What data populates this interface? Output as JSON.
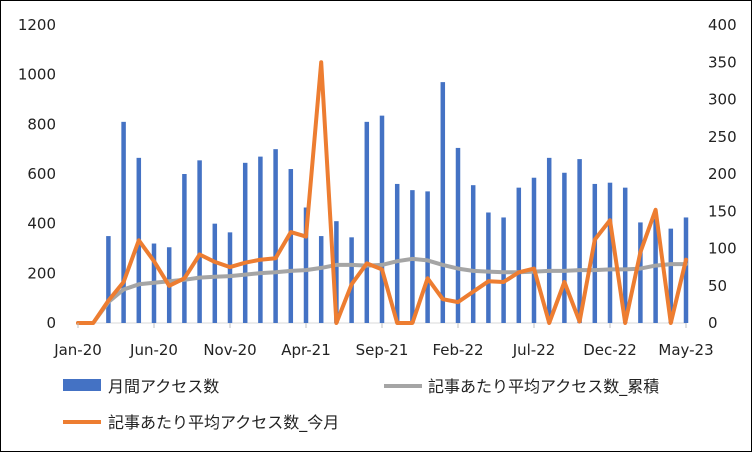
{
  "chart_data": {
    "type": "bar+line",
    "title": "",
    "x_tick_labels": [
      "Jan-20",
      "Jun-20",
      "Nov-20",
      "Apr-21",
      "Sep-21",
      "Feb-22",
      "Jul-22",
      "Dec-22",
      "May-23"
    ],
    "y_left": {
      "ylim": [
        0,
        1200
      ],
      "ticks": [
        "0",
        "200",
        "400",
        "600",
        "800",
        "1000",
        "1200"
      ]
    },
    "y_right": {
      "ylim": [
        0,
        400
      ],
      "ticks": [
        "0",
        "50",
        "100",
        "150",
        "200",
        "250",
        "300",
        "350",
        "400"
      ]
    },
    "months": [
      "Jan-20",
      "Feb-20",
      "Mar-20",
      "Apr-20",
      "May-20",
      "Jun-20",
      "Jul-20",
      "Aug-20",
      "Sep-20",
      "Oct-20",
      "Nov-20",
      "Dec-20",
      "Jan-21",
      "Feb-21",
      "Mar-21",
      "Apr-21",
      "May-21",
      "Jun-21",
      "Jul-21",
      "Aug-21",
      "Sep-21",
      "Oct-21",
      "Nov-21",
      "Dec-21",
      "Jan-22",
      "Feb-22",
      "Mar-22",
      "Apr-22",
      "May-22",
      "Jun-22",
      "Jul-22",
      "Aug-22",
      "Sep-22",
      "Oct-22",
      "Nov-22",
      "Dec-22",
      "Jan-23",
      "Feb-23",
      "Mar-23",
      "Apr-23",
      "May-23"
    ],
    "series": [
      {
        "name": "月間アクセス数",
        "kind": "bar",
        "axis": "left",
        "color": "#4472C4",
        "values": [
          0,
          0,
          350,
          810,
          665,
          320,
          305,
          600,
          655,
          400,
          365,
          645,
          670,
          700,
          620,
          465,
          350,
          410,
          345,
          810,
          835,
          560,
          535,
          530,
          970,
          705,
          555,
          445,
          425,
          545,
          585,
          665,
          605,
          660,
          560,
          565,
          545,
          405,
          420,
          380,
          425
        ]
      },
      {
        "name": "記事あたり平均アクセス数_累積",
        "kind": "line",
        "axis": "right",
        "color": "#A5A5A5",
        "values": [
          0,
          0,
          28,
          45,
          52,
          54,
          56,
          58,
          61,
          62,
          63,
          65,
          67,
          68,
          70,
          71,
          74,
          78,
          78,
          77,
          78,
          83,
          86,
          84,
          78,
          73,
          70,
          69,
          68,
          68,
          69,
          70,
          70,
          71,
          71,
          72,
          72,
          73,
          77,
          79,
          79
        ]
      },
      {
        "name": "記事あたり平均アクセス数_今月",
        "kind": "line",
        "axis": "right",
        "color": "#ED7D31",
        "values": [
          0,
          0,
          30,
          55,
          111,
          83,
          50,
          60,
          92,
          82,
          75,
          81,
          85,
          87,
          122,
          116,
          350,
          0,
          52,
          80,
          72,
          0,
          0,
          60,
          32,
          28,
          42,
          56,
          55,
          68,
          73,
          0,
          55,
          2,
          112,
          138,
          0,
          95,
          152,
          0,
          85
        ]
      }
    ],
    "legend_position": "bottom"
  }
}
